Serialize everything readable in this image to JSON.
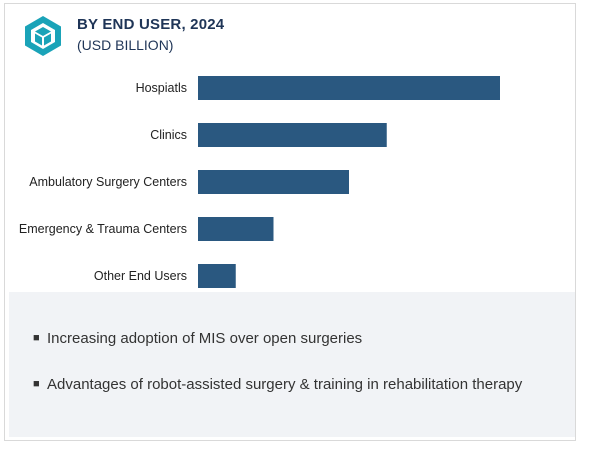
{
  "header": {
    "title": "BY END USER, 2024",
    "subtitle": "(USD BILLION)"
  },
  "colors": {
    "bar": "#2a5880",
    "title": "#1f3557",
    "notes_background": "#f1f3f6"
  },
  "icons": {
    "logo": "cube-hexagon-logo-icon",
    "bullet": "square-bullet-icon"
  },
  "chart_data": {
    "type": "bar",
    "orientation": "horizontal",
    "title": "BY END USER, 2024",
    "unit": "(USD BILLION)",
    "categories": [
      "Hospiatls",
      "Clinics",
      "Ambulatory Surgery Centers",
      "Emergency & Trauma Centers",
      "Other End Users"
    ],
    "values": [
      100,
      62.5,
      50,
      25,
      12.5
    ],
    "value_scale": "relative (no axis printed)",
    "xlim": [
      0,
      100
    ],
    "grid": false,
    "legend": "none"
  },
  "notes": {
    "items": [
      "Increasing adoption of MIS over open surgeries",
      "Advantages of robot-assisted surgery & training in rehabilitation therapy"
    ]
  }
}
